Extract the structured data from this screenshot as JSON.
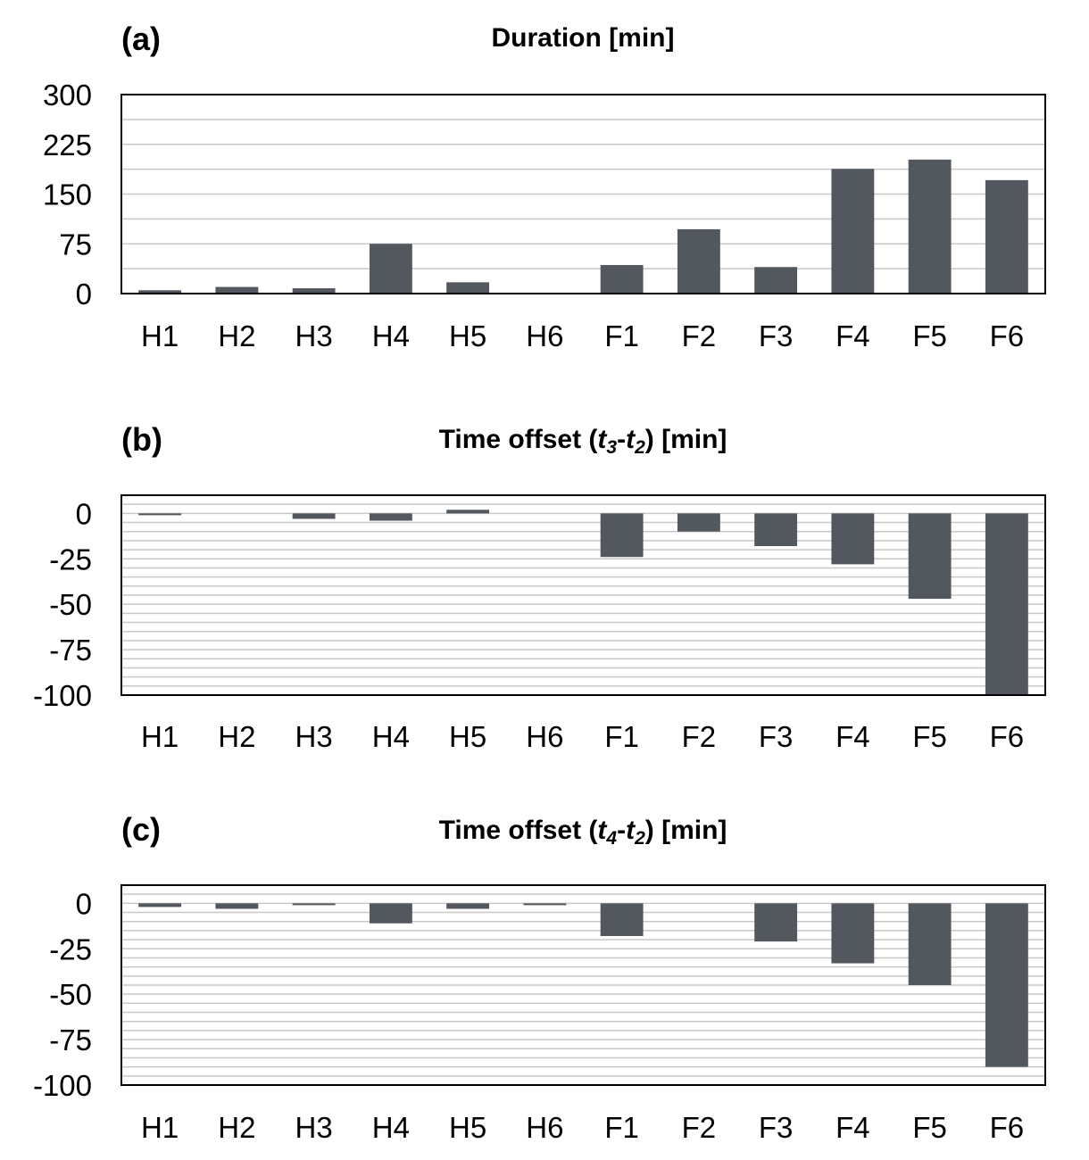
{
  "colors": {
    "bar": "#53575e",
    "grid": "#c8c8c8",
    "frame": "#000000"
  },
  "chart_data": [
    {
      "type": "bar",
      "panel_label": "(a)",
      "title": "Duration [min]",
      "title_parts": [],
      "categories": [
        "H1",
        "H2",
        "H3",
        "H4",
        "H5",
        "H6",
        "F1",
        "F2",
        "F3",
        "F4",
        "F5",
        "F6"
      ],
      "values": [
        5,
        10,
        8,
        75,
        17,
        0,
        43,
        97,
        40,
        188,
        202,
        171
      ],
      "ylim": [
        0,
        300
      ],
      "yticks": [
        "300",
        "225",
        "150",
        "75",
        "0"
      ],
      "ytick_values": [
        300,
        225,
        150,
        75,
        0
      ],
      "grid_step": 37.5,
      "xlabel": "",
      "ylabel": ""
    },
    {
      "type": "bar",
      "panel_label": "(b)",
      "title": "Time offset (t3-t2) [min]",
      "title_parts": [
        {
          "text": "Time offset (",
          "style": "normal"
        },
        {
          "text": "t",
          "style": "italic"
        },
        {
          "text": "3",
          "style": "italic-sub"
        },
        {
          "text": "-",
          "style": "normal"
        },
        {
          "text": "t",
          "style": "italic"
        },
        {
          "text": "2",
          "style": "italic-sub"
        },
        {
          "text": ")   [min]",
          "style": "normal"
        }
      ],
      "categories": [
        "H1",
        "H2",
        "H3",
        "H4",
        "H5",
        "H6",
        "F1",
        "F2",
        "F3",
        "F4",
        "F5",
        "F6"
      ],
      "values": [
        -1,
        0,
        -3,
        -4,
        2,
        0,
        -24,
        -10,
        -18,
        -28,
        -47,
        -100
      ],
      "ylim": [
        -100,
        10
      ],
      "yticks": [
        "0",
        "-25",
        "-50",
        "-75",
        "-100"
      ],
      "ytick_values": [
        0,
        -25,
        -50,
        -75,
        -100
      ],
      "grid_step": 5,
      "xlabel": "",
      "ylabel": ""
    },
    {
      "type": "bar",
      "panel_label": "(c)",
      "title": "Time offset (t4-t2) [min]",
      "title_parts": [
        {
          "text": "Time offset (",
          "style": "normal"
        },
        {
          "text": "t",
          "style": "italic"
        },
        {
          "text": "4",
          "style": "italic-sub"
        },
        {
          "text": "-",
          "style": "normal"
        },
        {
          "text": "t",
          "style": "italic"
        },
        {
          "text": "2",
          "style": "italic-sub"
        },
        {
          "text": ")   [min]",
          "style": "normal"
        }
      ],
      "categories": [
        "H1",
        "H2",
        "H3",
        "H4",
        "H5",
        "H6",
        "F1",
        "F2",
        "F3",
        "F4",
        "F5",
        "F6"
      ],
      "values": [
        -2,
        -3,
        -1,
        -11,
        -3,
        -1,
        -18,
        0,
        -21,
        -33,
        -45,
        -90
      ],
      "ylim": [
        -100,
        10
      ],
      "yticks": [
        "0",
        "-25",
        "-50",
        "-75",
        "-100"
      ],
      "ytick_values": [
        0,
        -25,
        -50,
        -75,
        -100
      ],
      "grid_step": 5,
      "xlabel": "",
      "ylabel": ""
    }
  ]
}
